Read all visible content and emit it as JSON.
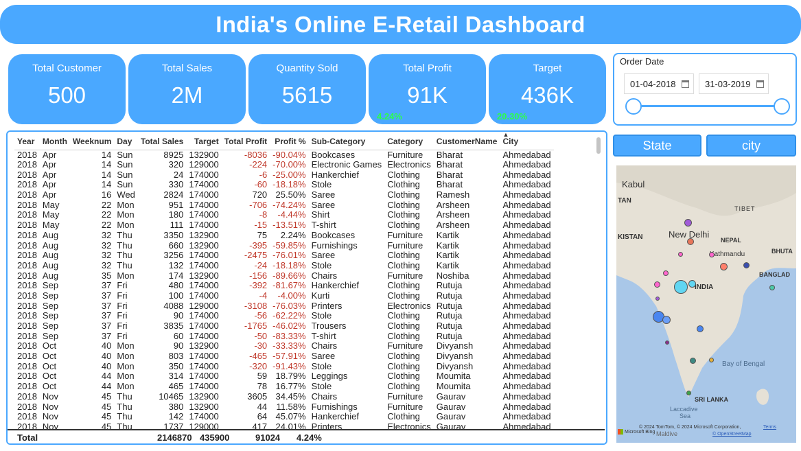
{
  "title": "India's Online E-Retail Dashboard",
  "kpis": [
    {
      "label": "Total Customer",
      "value": "500",
      "sub": ""
    },
    {
      "label": "Total Sales",
      "value": "2M",
      "sub": ""
    },
    {
      "label": "Quantity Sold",
      "value": "5615",
      "sub": ""
    },
    {
      "label": "Total Profit",
      "value": "91K",
      "sub": "4.24%"
    },
    {
      "label": "Target",
      "value": "436K",
      "sub": "20.30%"
    }
  ],
  "order_date": {
    "label": "Order Date",
    "start": "01-04-2018",
    "end": "31-03-2019"
  },
  "buttons": {
    "state": "State",
    "city": "city"
  },
  "table": {
    "columns": [
      "Year",
      "Month",
      "Weeknum",
      "Day",
      "Total Sales",
      "Target",
      "Total Profit",
      "Profit %",
      "Sub-Category",
      "Category",
      "CustomerName",
      "City"
    ],
    "rows": [
      [
        "2018",
        "Apr",
        "14",
        "Sun",
        "8925",
        "132900",
        "-8036",
        "-90.04%",
        "Bookcases",
        "Furniture",
        "Bharat",
        "Ahmedabad"
      ],
      [
        "2018",
        "Apr",
        "14",
        "Sun",
        "320",
        "129000",
        "-224",
        "-70.00%",
        "Electronic Games",
        "Electronics",
        "Bharat",
        "Ahmedabad"
      ],
      [
        "2018",
        "Apr",
        "14",
        "Sun",
        "24",
        "174000",
        "-6",
        "-25.00%",
        "Hankerchief",
        "Clothing",
        "Bharat",
        "Ahmedabad"
      ],
      [
        "2018",
        "Apr",
        "14",
        "Sun",
        "330",
        "174000",
        "-60",
        "-18.18%",
        "Stole",
        "Clothing",
        "Bharat",
        "Ahmedabad"
      ],
      [
        "2018",
        "Apr",
        "16",
        "Wed",
        "2824",
        "174000",
        "720",
        "25.50%",
        "Saree",
        "Clothing",
        "Ramesh",
        "Ahmedabad"
      ],
      [
        "2018",
        "May",
        "22",
        "Mon",
        "951",
        "174000",
        "-706",
        "-74.24%",
        "Saree",
        "Clothing",
        "Arsheen",
        "Ahmedabad"
      ],
      [
        "2018",
        "May",
        "22",
        "Mon",
        "180",
        "174000",
        "-8",
        "-4.44%",
        "Shirt",
        "Clothing",
        "Arsheen",
        "Ahmedabad"
      ],
      [
        "2018",
        "May",
        "22",
        "Mon",
        "111",
        "174000",
        "-15",
        "-13.51%",
        "T-shirt",
        "Clothing",
        "Arsheen",
        "Ahmedabad"
      ],
      [
        "2018",
        "Aug",
        "32",
        "Thu",
        "3350",
        "132900",
        "75",
        "2.24%",
        "Bookcases",
        "Furniture",
        "Kartik",
        "Ahmedabad"
      ],
      [
        "2018",
        "Aug",
        "32",
        "Thu",
        "660",
        "132900",
        "-395",
        "-59.85%",
        "Furnishings",
        "Furniture",
        "Kartik",
        "Ahmedabad"
      ],
      [
        "2018",
        "Aug",
        "32",
        "Thu",
        "3256",
        "174000",
        "-2475",
        "-76.01%",
        "Saree",
        "Clothing",
        "Kartik",
        "Ahmedabad"
      ],
      [
        "2018",
        "Aug",
        "32",
        "Thu",
        "132",
        "174000",
        "-24",
        "-18.18%",
        "Stole",
        "Clothing",
        "Kartik",
        "Ahmedabad"
      ],
      [
        "2018",
        "Aug",
        "35",
        "Mon",
        "174",
        "132900",
        "-156",
        "-89.66%",
        "Chairs",
        "Furniture",
        "Noshiba",
        "Ahmedabad"
      ],
      [
        "2018",
        "Sep",
        "37",
        "Fri",
        "480",
        "174000",
        "-392",
        "-81.67%",
        "Hankerchief",
        "Clothing",
        "Rutuja",
        "Ahmedabad"
      ],
      [
        "2018",
        "Sep",
        "37",
        "Fri",
        "100",
        "174000",
        "-4",
        "-4.00%",
        "Kurti",
        "Clothing",
        "Rutuja",
        "Ahmedabad"
      ],
      [
        "2018",
        "Sep",
        "37",
        "Fri",
        "4088",
        "129000",
        "-3108",
        "-76.03%",
        "Printers",
        "Electronics",
        "Rutuja",
        "Ahmedabad"
      ],
      [
        "2018",
        "Sep",
        "37",
        "Fri",
        "90",
        "174000",
        "-56",
        "-62.22%",
        "Stole",
        "Clothing",
        "Rutuja",
        "Ahmedabad"
      ],
      [
        "2018",
        "Sep",
        "37",
        "Fri",
        "3835",
        "174000",
        "-1765",
        "-46.02%",
        "Trousers",
        "Clothing",
        "Rutuja",
        "Ahmedabad"
      ],
      [
        "2018",
        "Sep",
        "37",
        "Fri",
        "60",
        "174000",
        "-50",
        "-83.33%",
        "T-shirt",
        "Clothing",
        "Rutuja",
        "Ahmedabad"
      ],
      [
        "2018",
        "Oct",
        "40",
        "Mon",
        "90",
        "132900",
        "-30",
        "-33.33%",
        "Chairs",
        "Furniture",
        "Divyansh",
        "Ahmedabad"
      ],
      [
        "2018",
        "Oct",
        "40",
        "Mon",
        "803",
        "174000",
        "-465",
        "-57.91%",
        "Saree",
        "Clothing",
        "Divyansh",
        "Ahmedabad"
      ],
      [
        "2018",
        "Oct",
        "40",
        "Mon",
        "350",
        "174000",
        "-320",
        "-91.43%",
        "Stole",
        "Clothing",
        "Divyansh",
        "Ahmedabad"
      ],
      [
        "2018",
        "Oct",
        "44",
        "Mon",
        "314",
        "174000",
        "59",
        "18.79%",
        "Leggings",
        "Clothing",
        "Moumita",
        "Ahmedabad"
      ],
      [
        "2018",
        "Oct",
        "44",
        "Mon",
        "465",
        "174000",
        "78",
        "16.77%",
        "Stole",
        "Clothing",
        "Moumita",
        "Ahmedabad"
      ],
      [
        "2018",
        "Nov",
        "45",
        "Thu",
        "10465",
        "132900",
        "3605",
        "34.45%",
        "Chairs",
        "Furniture",
        "Gaurav",
        "Ahmedabad"
      ],
      [
        "2018",
        "Nov",
        "45",
        "Thu",
        "380",
        "132900",
        "44",
        "11.58%",
        "Furnishings",
        "Furniture",
        "Gaurav",
        "Ahmedabad"
      ],
      [
        "2018",
        "Nov",
        "45",
        "Thu",
        "142",
        "174000",
        "64",
        "45.07%",
        "Hankerchief",
        "Clothing",
        "Gaurav",
        "Ahmedabad"
      ],
      [
        "2018",
        "Nov",
        "45",
        "Thu",
        "1737",
        "129000",
        "417",
        "24.01%",
        "Printers",
        "Electronics",
        "Gaurav",
        "Ahmedabad"
      ]
    ],
    "total": {
      "label": "Total",
      "sales": "2146870",
      "target": "435900",
      "profit": "91024",
      "profit_pct": "4.24%"
    }
  },
  "map": {
    "labels": [
      "Kabul",
      "TAN",
      "TIBET",
      "KISTAN",
      "New Delhi",
      "NEPAL",
      "BHUTA",
      "Kathmandu",
      "INDIA",
      "BANGLAD",
      "Bay of Bengal",
      "SRI LANKA",
      "Laccadive",
      "Sea"
    ],
    "attribution": "© 2024 TomTom, © 2024 Microsoft Corporation,",
    "terms": "Terms",
    "osm": "© OpenStreetMap",
    "brand": "Microsoft Bing",
    "watermark": "Maldive"
  },
  "colors": {
    "accent": "#4aa8ff",
    "negative": "#c0392b",
    "kpi_sub": "#2bff4a"
  }
}
